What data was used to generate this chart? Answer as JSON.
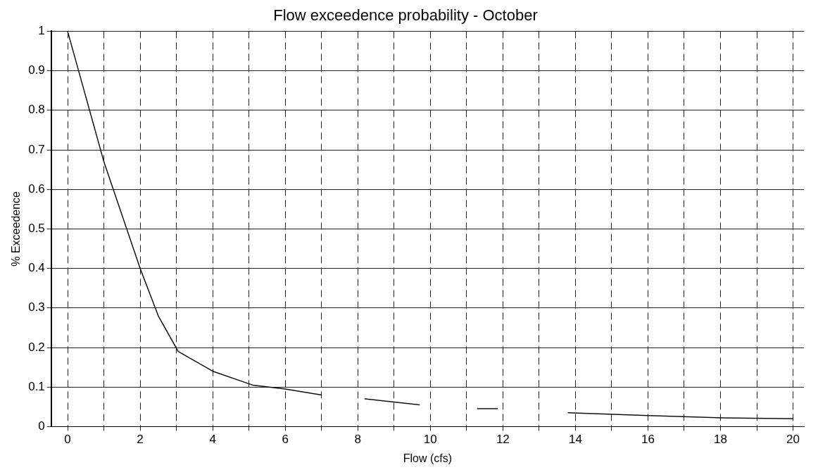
{
  "chart_data": {
    "type": "line",
    "title": "Flow exceedence probability - October",
    "xlabel": "Flow (cfs)",
    "ylabel": "% Exceedence",
    "series": [
      {
        "color": "#111111",
        "x": [
          0,
          1,
          2,
          2.5,
          3.05,
          4,
          5.1,
          6,
          7,
          7.6,
          8.2,
          9.7,
          10.5,
          11.3,
          11.85,
          12.5,
          13.8,
          16,
          18,
          20
        ],
        "values": [
          1,
          0.67,
          0.4,
          0.28,
          0.19,
          0.14,
          0.105,
          0.095,
          0.08,
          null,
          0.07,
          0.055,
          null,
          0.045,
          0.045,
          null,
          0.035,
          0.028,
          0.022,
          0.02
        ]
      }
    ],
    "xlim": [
      -0.45,
      20.3
    ],
    "ylim": [
      0,
      1
    ],
    "xticks": [
      0,
      {
        "value": 1,
        "label": null
      },
      2,
      {
        "value": 3,
        "label": null
      },
      4,
      {
        "value": 5,
        "label": null
      },
      6,
      {
        "value": 7,
        "label": null
      },
      8,
      {
        "value": 9,
        "label": null
      },
      10,
      {
        "value": 11,
        "label": null
      },
      12,
      {
        "value": 13,
        "label": null
      },
      14,
      {
        "value": 15,
        "label": null
      },
      16,
      {
        "value": 17,
        "label": null
      },
      18,
      {
        "value": 19,
        "label": null
      },
      20
    ],
    "yticks": [
      0,
      0.1,
      0.2,
      0.3,
      0.4,
      0.5,
      0.6,
      0.7,
      0.8,
      0.9,
      1
    ],
    "grid": true,
    "legend": false,
    "marker": "none",
    "line_style": "solid"
  }
}
